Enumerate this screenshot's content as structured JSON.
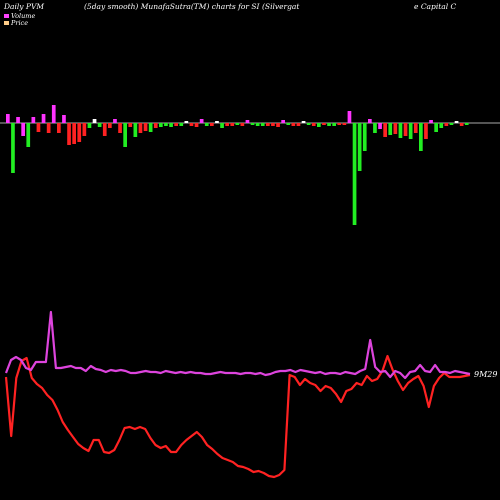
{
  "header": {
    "left_title": "Daily PVM",
    "subtitle": "(5day smooth) MunafaSutra(TM) charts for SI",
    "company_line1": "(Silvergat",
    "company_line2": "e  Capital C",
    "legend_volume": "Volume",
    "legend_price": "Price"
  },
  "colors": {
    "background": "#000000",
    "up": "#22ee22",
    "down": "#ff2222",
    "pos": "#ff33ff",
    "neutral": "#ffffff",
    "price_line": "#ff2222",
    "volume_line": "#dd44dd",
    "axis": "#aaaaaa",
    "legend_volume": "#ff44ff",
    "legend_price": "#ffcc88"
  },
  "chart_data": {
    "type": "bar",
    "volume_bars": [
      {
        "v": 9,
        "c": "pos"
      },
      {
        "v": -50,
        "c": "up"
      },
      {
        "v": 6,
        "c": "pos"
      },
      {
        "v": -13,
        "c": "pos"
      },
      {
        "v": -24,
        "c": "up"
      },
      {
        "v": 6,
        "c": "pos"
      },
      {
        "v": -9,
        "c": "down"
      },
      {
        "v": 9,
        "c": "pos"
      },
      {
        "v": -10,
        "c": "down"
      },
      {
        "v": 18,
        "c": "pos"
      },
      {
        "v": -10,
        "c": "down"
      },
      {
        "v": 8,
        "c": "pos"
      },
      {
        "v": -22,
        "c": "down"
      },
      {
        "v": -21,
        "c": "down"
      },
      {
        "v": -19,
        "c": "down"
      },
      {
        "v": -13,
        "c": "down"
      },
      {
        "v": -5,
        "c": "up"
      },
      {
        "v": 4,
        "c": "neutral"
      },
      {
        "v": -4,
        "c": "up"
      },
      {
        "v": -13,
        "c": "down"
      },
      {
        "v": -5,
        "c": "down"
      },
      {
        "v": 4,
        "c": "pos"
      },
      {
        "v": -10,
        "c": "down"
      },
      {
        "v": -24,
        "c": "up"
      },
      {
        "v": -4,
        "c": "down"
      },
      {
        "v": -14,
        "c": "up"
      },
      {
        "v": -10,
        "c": "down"
      },
      {
        "v": -8,
        "c": "down"
      },
      {
        "v": -9,
        "c": "up"
      },
      {
        "v": -5,
        "c": "down"
      },
      {
        "v": -4,
        "c": "up"
      },
      {
        "v": -3,
        "c": "up"
      },
      {
        "v": -4,
        "c": "up"
      },
      {
        "v": -3,
        "c": "down"
      },
      {
        "v": -3,
        "c": "up"
      },
      {
        "v": 2,
        "c": "neutral"
      },
      {
        "v": -3,
        "c": "down"
      },
      {
        "v": -4,
        "c": "down"
      },
      {
        "v": 4,
        "c": "pos"
      },
      {
        "v": -3,
        "c": "up"
      },
      {
        "v": -3,
        "c": "down"
      },
      {
        "v": 2,
        "c": "neutral"
      },
      {
        "v": -5,
        "c": "up"
      },
      {
        "v": -3,
        "c": "down"
      },
      {
        "v": -3,
        "c": "down"
      },
      {
        "v": -2,
        "c": "up"
      },
      {
        "v": -3,
        "c": "down"
      },
      {
        "v": 3,
        "c": "pos"
      },
      {
        "v": -2,
        "c": "up"
      },
      {
        "v": -3,
        "c": "up"
      },
      {
        "v": -3,
        "c": "up"
      },
      {
        "v": -3,
        "c": "down"
      },
      {
        "v": -3,
        "c": "down"
      },
      {
        "v": -4,
        "c": "down"
      },
      {
        "v": 3,
        "c": "pos"
      },
      {
        "v": -2,
        "c": "up"
      },
      {
        "v": -3,
        "c": "down"
      },
      {
        "v": -3,
        "c": "down"
      },
      {
        "v": 2,
        "c": "neutral"
      },
      {
        "v": -2,
        "c": "up"
      },
      {
        "v": -3,
        "c": "down"
      },
      {
        "v": -4,
        "c": "up"
      },
      {
        "v": -2,
        "c": "down"
      },
      {
        "v": -3,
        "c": "up"
      },
      {
        "v": -3,
        "c": "up"
      },
      {
        "v": -2,
        "c": "down"
      },
      {
        "v": -2,
        "c": "down"
      },
      {
        "v": 12,
        "c": "pos"
      },
      {
        "v": -102,
        "c": "up"
      },
      {
        "v": -48,
        "c": "up"
      },
      {
        "v": -28,
        "c": "up"
      },
      {
        "v": 4,
        "c": "pos"
      },
      {
        "v": -10,
        "c": "up"
      },
      {
        "v": -6,
        "c": "pos"
      },
      {
        "v": -14,
        "c": "down"
      },
      {
        "v": -12,
        "c": "up"
      },
      {
        "v": -11,
        "c": "down"
      },
      {
        "v": -15,
        "c": "up"
      },
      {
        "v": -13,
        "c": "down"
      },
      {
        "v": -16,
        "c": "up"
      },
      {
        "v": -10,
        "c": "down"
      },
      {
        "v": -28,
        "c": "up"
      },
      {
        "v": -16,
        "c": "down"
      },
      {
        "v": 3,
        "c": "pos"
      },
      {
        "v": -9,
        "c": "up"
      },
      {
        "v": -5,
        "c": "up"
      },
      {
        "v": -3,
        "c": "down"
      },
      {
        "v": -2,
        "c": "up"
      },
      {
        "v": 2,
        "c": "neutral"
      },
      {
        "v": -3,
        "c": "down"
      },
      {
        "v": -2,
        "c": "up"
      }
    ],
    "volume_line": [
      373,
      360,
      357,
      360,
      368,
      370,
      362,
      362,
      362,
      312,
      368,
      368,
      367,
      366,
      368,
      368,
      371,
      366,
      369,
      370,
      372,
      370,
      371,
      370,
      371,
      373,
      373,
      372,
      371,
      372,
      372,
      373,
      371,
      372,
      373,
      372,
      373,
      372,
      373,
      373,
      374,
      374,
      373,
      372,
      373,
      373,
      373,
      374,
      373,
      373,
      374,
      373,
      375,
      374,
      372,
      371,
      371,
      370,
      372,
      370,
      371,
      372,
      373,
      372,
      374,
      373,
      373,
      374,
      372,
      373,
      374,
      371,
      369,
      340,
      367,
      372,
      371,
      377,
      371,
      373,
      378,
      372,
      371,
      365,
      371,
      372,
      365,
      372,
      372,
      373,
      371,
      372,
      373,
      374
    ],
    "price_line": [
      377,
      436,
      378,
      361,
      358,
      378,
      384,
      388,
      395,
      400,
      410,
      422,
      430,
      437,
      444,
      448,
      451,
      440,
      440,
      452,
      453,
      450,
      440,
      428,
      427,
      429,
      427,
      429,
      438,
      445,
      448,
      446,
      452,
      452,
      445,
      440,
      436,
      432,
      437,
      445,
      449,
      454,
      458,
      460,
      462,
      466,
      467,
      469,
      472,
      471,
      473,
      476,
      477,
      475,
      470,
      375,
      377,
      385,
      379,
      383,
      385,
      391,
      386,
      388,
      394,
      402,
      391,
      389,
      383,
      385,
      376,
      381,
      379,
      371,
      356,
      370,
      381,
      390,
      383,
      379,
      376,
      386,
      407,
      386,
      378,
      373,
      377,
      377,
      377,
      376,
      375
    ],
    "mark_label": "9M29",
    "ylim_volume": [
      -102,
      18
    ],
    "grid": false
  }
}
